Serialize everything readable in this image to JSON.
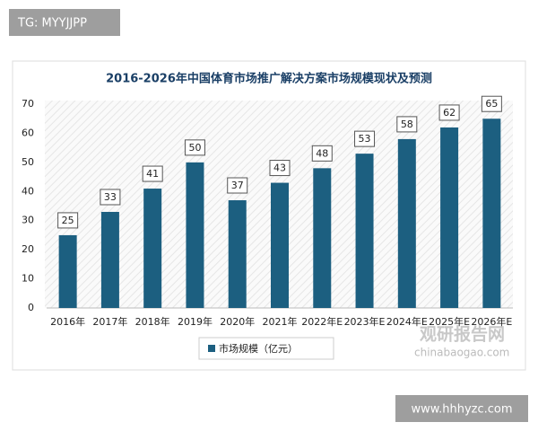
{
  "overlay": {
    "tag": "TG: MYYJJPP",
    "site": "www.hhhyzc.com"
  },
  "watermark": {
    "name": "观研报告网",
    "url": "chinabaogao.com"
  },
  "chart_data": {
    "type": "bar",
    "title": "2016-2026年中国体育市场推广解决方案市场规模现状及预测",
    "categories": [
      "2016年",
      "2017年",
      "2018年",
      "2019年",
      "2020年",
      "2021年",
      "2022年E",
      "2023年E",
      "2024年E",
      "2025年E",
      "2026年E"
    ],
    "series": [
      {
        "name": "市场规模（亿元）",
        "color": "#1c5f80",
        "values": [
          25,
          33,
          41,
          50,
          37,
          43,
          48,
          53,
          58,
          62,
          65
        ]
      }
    ],
    "ylim": [
      0,
      70
    ],
    "yticks": [
      0,
      10,
      20,
      30,
      40,
      50,
      60,
      70
    ],
    "grid": false,
    "legend": "bottom"
  }
}
